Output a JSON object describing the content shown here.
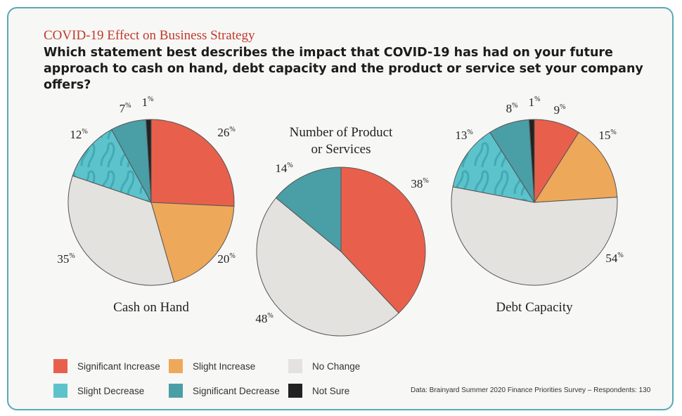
{
  "header": {
    "kicker": "COVID-19 Effect on Business Strategy",
    "question": "Which statement best describes the impact that COVID-19 has had on your future approach to cash on hand, debt capacity and the product or service set your company offers?"
  },
  "colors": {
    "significant_increase": "#e8604c",
    "slight_increase": "#eea85a",
    "no_change": "#e4e2df",
    "slight_decrease": "#5cc3cc",
    "significant_decrease": "#4a9ea6",
    "not_sure": "#222222"
  },
  "chart_data": [
    {
      "type": "pie",
      "title": "Cash on Hand",
      "labels": [
        "Significant Increase",
        "Slight Increase",
        "No Change",
        "Slight Decrease",
        "Significant Decrease",
        "Not Sure"
      ],
      "values": [
        26,
        20,
        35,
        12,
        7,
        1
      ],
      "display": [
        "26%",
        "20%",
        "35%",
        "12%",
        "7%",
        "1%"
      ]
    },
    {
      "type": "pie",
      "title": "Number of Product or Services",
      "title_lines": [
        "Number of Product",
        "or Services"
      ],
      "labels": [
        "Significant Increase",
        "No Change",
        "Significant Decrease"
      ],
      "values": [
        38,
        48,
        14
      ],
      "display": [
        "38%",
        "48%",
        "14%"
      ]
    },
    {
      "type": "pie",
      "title": "Debt Capacity",
      "labels": [
        "Significant Increase",
        "Slight Increase",
        "No Change",
        "Slight Decrease",
        "Significant Decrease",
        "Not Sure"
      ],
      "values": [
        9,
        15,
        54,
        13,
        8,
        1
      ],
      "display": [
        "9%",
        "15%",
        "54%",
        "13%",
        "8%",
        "1%"
      ]
    }
  ],
  "legend": {
    "items": [
      {
        "label": "Significant Increase",
        "key": "significant_increase"
      },
      {
        "label": "Slight Increase",
        "key": "slight_increase"
      },
      {
        "label": "No Change",
        "key": "no_change"
      },
      {
        "label": "Slight Decrease",
        "key": "slight_decrease"
      },
      {
        "label": "Significant Decrease",
        "key": "significant_decrease"
      },
      {
        "label": "Not Sure",
        "key": "not_sure"
      }
    ]
  },
  "source": "Data: Brainyard Summer 2020 Finance Priorities Survey – Respondents: 130"
}
